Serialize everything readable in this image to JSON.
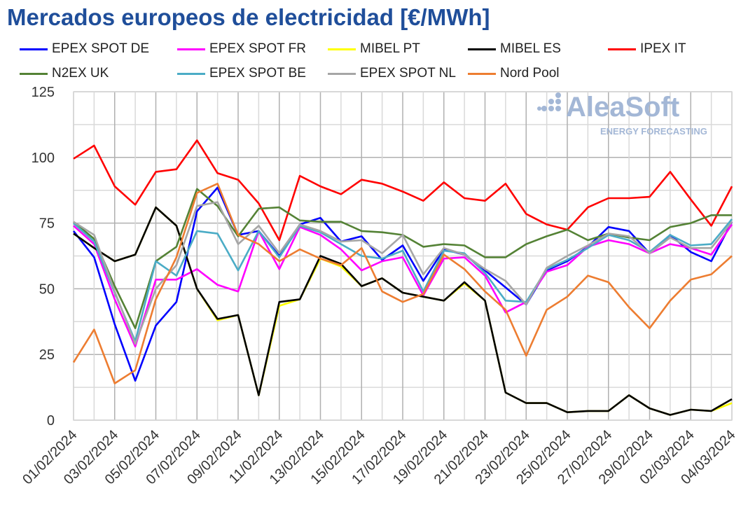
{
  "chart_data": {
    "type": "line",
    "title": "Mercados europeos de electricidad [€/MWh]",
    "ylim": [
      0,
      125
    ],
    "yticks": [
      0,
      25,
      50,
      75,
      100,
      125
    ],
    "grid": true,
    "legend_placement": "top",
    "x": [
      "01/02/2024",
      "02/02/2024",
      "03/02/2024",
      "04/02/2024",
      "05/02/2024",
      "06/02/2024",
      "07/02/2024",
      "08/02/2024",
      "09/02/2024",
      "10/02/2024",
      "11/02/2024",
      "12/02/2024",
      "13/02/2024",
      "14/02/2024",
      "15/02/2024",
      "16/02/2024",
      "17/02/2024",
      "18/02/2024",
      "19/02/2024",
      "20/02/2024",
      "21/02/2024",
      "22/02/2024",
      "23/02/2024",
      "24/02/2024",
      "25/02/2024",
      "26/02/2024",
      "27/02/2024",
      "28/02/2024",
      "29/02/2024",
      "01/03/2024",
      "02/03/2024",
      "03/03/2024",
      "04/03/2024"
    ],
    "xtick_labels": [
      "01/02/2024",
      "03/02/2024",
      "05/02/2024",
      "07/02/2024",
      "09/02/2024",
      "11/02/2024",
      "13/02/2024",
      "15/02/2024",
      "17/02/2024",
      "19/02/2024",
      "21/02/2024",
      "23/02/2024",
      "25/02/2024",
      "27/02/2024",
      "29/02/2024",
      "02/03/2024",
      "04/03/2024"
    ],
    "series": [
      {
        "name": "EPEX SPOT DE",
        "color": "#0000ff",
        "values": [
          72,
          62,
          36.5,
          15,
          36,
          45,
          79.5,
          88.5,
          70.5,
          72,
          62.5,
          74.5,
          77,
          68,
          70,
          61,
          66.5,
          53,
          65,
          63,
          57,
          50.5,
          44,
          57,
          60.5,
          66,
          73.5,
          72,
          63.5,
          70.5,
          64,
          60.5,
          75.5
        ]
      },
      {
        "name": "EPEX SPOT FR",
        "color": "#ff00ff",
        "values": [
          74,
          67,
          46,
          28,
          53.5,
          53.5,
          57.5,
          51.5,
          49,
          72,
          57.5,
          73.5,
          70.5,
          65,
          57,
          60.5,
          62,
          47.5,
          61.5,
          62,
          55,
          41,
          45,
          56.5,
          59,
          66,
          68.5,
          67,
          63.5,
          67,
          65.5,
          63,
          74.5
        ]
      },
      {
        "name": "MIBEL PT",
        "color": "#ffff00",
        "values": [
          71,
          65.5,
          60.5,
          63,
          81,
          74,
          50,
          38,
          40,
          9.5,
          43.5,
          46,
          61.5,
          58.5,
          51,
          54,
          48.5,
          47,
          45.5,
          52,
          45.5,
          10.5,
          6.5,
          6.5,
          3,
          3.5,
          3.5,
          9.5,
          4.5,
          2,
          4,
          3.5,
          6.5
        ]
      },
      {
        "name": "MIBEL ES",
        "color": "#000000",
        "values": [
          71,
          65.5,
          60.5,
          63,
          81,
          74,
          50,
          38.5,
          40,
          9.5,
          45,
          46,
          62.5,
          59.5,
          51,
          54,
          48.5,
          47,
          45.5,
          52.5,
          45.5,
          10.5,
          6.5,
          6.5,
          3,
          3.5,
          3.5,
          9.5,
          4.5,
          2,
          4,
          3.5,
          8
        ]
      },
      {
        "name": "IPEX IT",
        "color": "#ff0000",
        "values": [
          99.5,
          104.5,
          89,
          82,
          94.5,
          95.5,
          106.5,
          94,
          91.5,
          82.5,
          68.5,
          93,
          89,
          86,
          91.5,
          90,
          87,
          83.5,
          90.5,
          84.5,
          83.5,
          90,
          78.5,
          74.5,
          72.5,
          81,
          84.5,
          84.5,
          85,
          94.5,
          84,
          74,
          89
        ]
      },
      {
        "name": "N2EX UK",
        "color": "#548235",
        "values": [
          75.5,
          69,
          51,
          35,
          60.5,
          66,
          88,
          81.5,
          70,
          80.5,
          81,
          76,
          75.5,
          75.5,
          72,
          71.5,
          70.5,
          66,
          67,
          66.5,
          62,
          62,
          67,
          70,
          72.5,
          68.5,
          71,
          69.5,
          68.5,
          73.5,
          75,
          78,
          78
        ]
      },
      {
        "name": "EPEX SPOT BE",
        "color": "#4bacc6",
        "values": [
          75,
          68,
          48.5,
          30,
          60.5,
          55,
          72,
          71,
          57,
          72,
          62,
          74,
          71.5,
          67,
          62.5,
          61.5,
          64.5,
          49,
          64.5,
          63.5,
          56,
          45.5,
          45,
          57.5,
          61,
          65.5,
          70.5,
          68.5,
          64,
          70.5,
          66.5,
          67,
          76.5
        ]
      },
      {
        "name": "EPEX SPOT NL",
        "color": "#a6a6a6",
        "values": [
          75.5,
          70.5,
          49,
          29,
          50,
          59,
          81.5,
          83,
          67,
          74,
          63.5,
          74.5,
          72,
          68,
          68.5,
          63.5,
          70.5,
          55.5,
          65.5,
          63,
          57.5,
          53,
          44,
          58,
          62.5,
          66.5,
          71,
          70,
          63.5,
          69.5,
          65.5,
          65.5,
          75.5
        ]
      },
      {
        "name": "Nord Pool",
        "color": "#ed7d31",
        "values": [
          22,
          34.5,
          14,
          19,
          46,
          62,
          86.5,
          90,
          70.5,
          67,
          60.5,
          65,
          61.5,
          59,
          65.5,
          49,
          45,
          48,
          63,
          57.5,
          49,
          42,
          24.5,
          42,
          47,
          55,
          52.5,
          43,
          35,
          45.5,
          53.5,
          55.5,
          62.5
        ]
      }
    ]
  },
  "watermark": {
    "brand": "AleaSoft",
    "tagline": "ENERGY FORECASTING",
    "color": "#a3b7d6"
  }
}
